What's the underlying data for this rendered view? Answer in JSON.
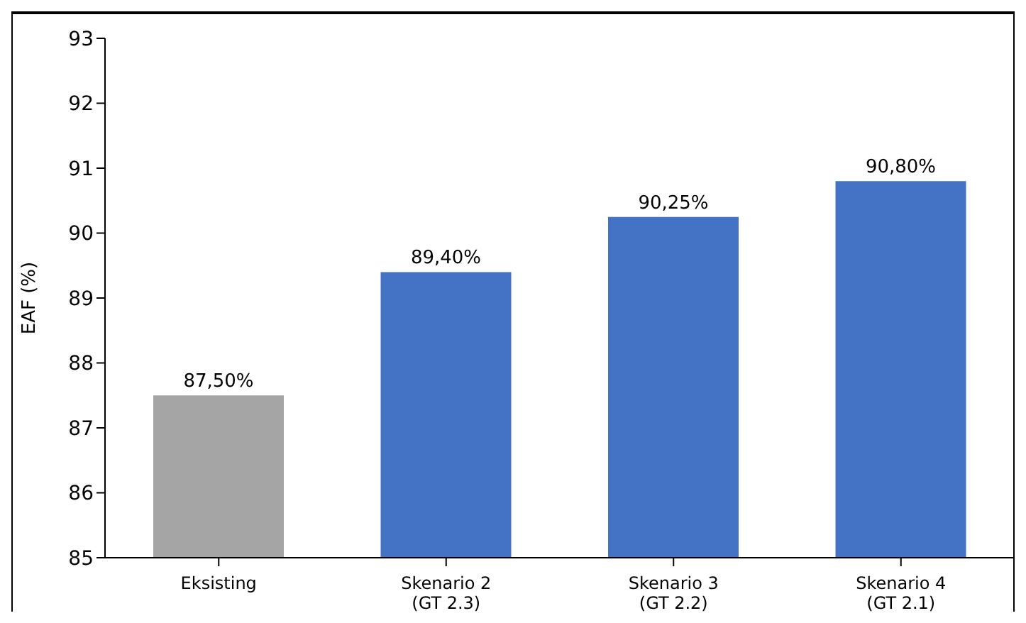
{
  "chart_data": {
    "type": "bar",
    "ylabel": "EAF (%)",
    "categories": [
      "Eksisting",
      "Skenario 2\n(GT 2.3)",
      "Skenario 3\n(GT 2.2)",
      "Skenario 4\n(GT 2.1)"
    ],
    "values": [
      87.5,
      89.4,
      90.25,
      90.8
    ],
    "value_labels": [
      "87,50%",
      "89,40%",
      "90,25%",
      "90,80%"
    ],
    "colors": [
      "#a5a5a5",
      "#4472c4",
      "#4472c4",
      "#4472c4"
    ],
    "ylim": [
      85,
      93
    ],
    "yticks": [
      85,
      86,
      87,
      88,
      89,
      90,
      91,
      92,
      93
    ],
    "grid": false,
    "legend": false
  }
}
